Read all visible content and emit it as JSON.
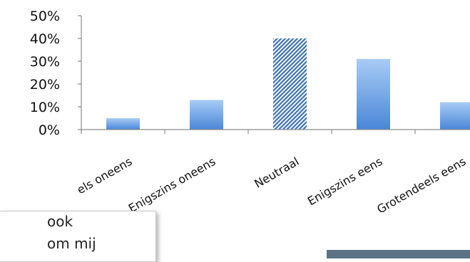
{
  "chart_data": {
    "type": "bar",
    "title": "",
    "xlabel": "",
    "ylabel": "",
    "categories": [
      "Grotendeels oneens",
      "Enigszins oneens",
      "Neutraal",
      "Enigszins eens",
      "Grotendeels eens"
    ],
    "visible_category_labels": [
      "els oneens",
      "Enigszins oneens",
      "Neutraal",
      "Enigszins eens",
      "Grotendeels eens"
    ],
    "values": [
      5,
      13,
      40,
      31,
      12
    ],
    "value_unit": "%",
    "ylim": [
      0,
      50
    ],
    "yticks": [
      "0%",
      "10%",
      "20%",
      "30%",
      "40%",
      "50%"
    ],
    "grid": false,
    "legend": "none",
    "highlighted_category": "Neutraal",
    "colors": {
      "bar_top": "#a8ccf5",
      "bar_bottom": "#4a86d8",
      "highlight_stripe": "#3d72b3",
      "axis": "#8c8c8c"
    }
  },
  "snippet": {
    "line_1": "ook",
    "line_2": "om mij"
  }
}
